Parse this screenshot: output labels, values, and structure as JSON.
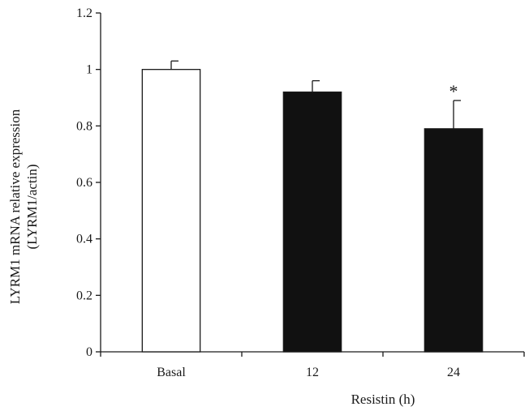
{
  "chart_data": {
    "type": "bar",
    "categories": [
      "Basal",
      "12",
      "24"
    ],
    "values": [
      1.0,
      0.92,
      0.79
    ],
    "errors": [
      0.03,
      0.04,
      0.1
    ],
    "bar_fill": [
      "#ffffff",
      "#111111",
      "#111111"
    ],
    "significance": [
      "",
      "",
      "*"
    ],
    "ylim": [
      0,
      1.2
    ],
    "yticks": [
      "0",
      "0.2",
      "0.4",
      "0.6",
      "0.8",
      "1",
      "1.2"
    ],
    "ylabel_line1": "LYRM1 mRNA relative expression",
    "ylabel_line2": "(LYRM1/actin)",
    "xlabel": "Resistin (h)",
    "grid": false,
    "legend": "none"
  }
}
